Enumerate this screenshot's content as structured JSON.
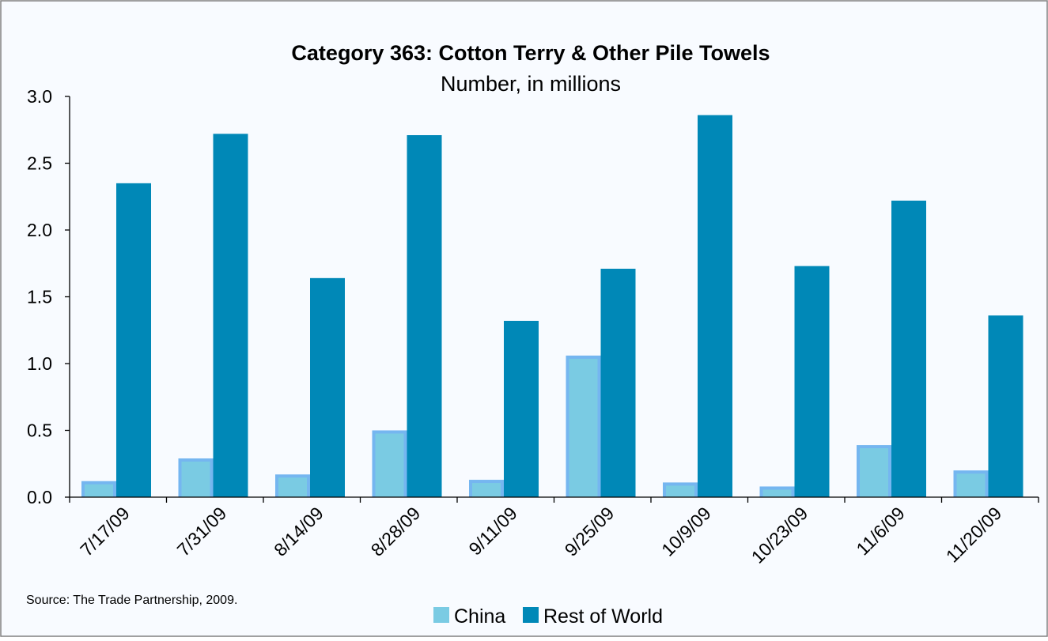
{
  "chart_data": {
    "type": "bar",
    "title": "Category 363: Cotton Terry & Other Pile Towels",
    "subtitle": "Number, in millions",
    "categories": [
      "7/17/09",
      "7/31/09",
      "8/14/09",
      "8/28/09",
      "9/11/09",
      "9/25/09",
      "10/9/09",
      "10/23/09",
      "11/6/09",
      "11/20/09"
    ],
    "series": [
      {
        "name": "China",
        "values": [
          0.12,
          0.29,
          0.17,
          0.5,
          0.13,
          1.06,
          0.11,
          0.08,
          0.39,
          0.2
        ],
        "color": "#75B6F0",
        "inner_color": "#7ACBE3"
      },
      {
        "name": "Rest of World",
        "values": [
          2.35,
          2.72,
          1.64,
          2.71,
          1.32,
          1.71,
          2.86,
          1.73,
          2.22,
          1.36
        ],
        "color": "#0088B7"
      }
    ],
    "yticks": [
      "0.0",
      "0.5",
      "1.0",
      "1.5",
      "2.0",
      "2.5",
      "3.0"
    ],
    "ylim": [
      0,
      3.0
    ],
    "grid": false,
    "legend_position": "bottom",
    "source": "Source: The Trade Partnership, 2009.",
    "colors": {
      "background": "#F8FBFF",
      "frame": "#808080",
      "axis": "#000000"
    }
  }
}
